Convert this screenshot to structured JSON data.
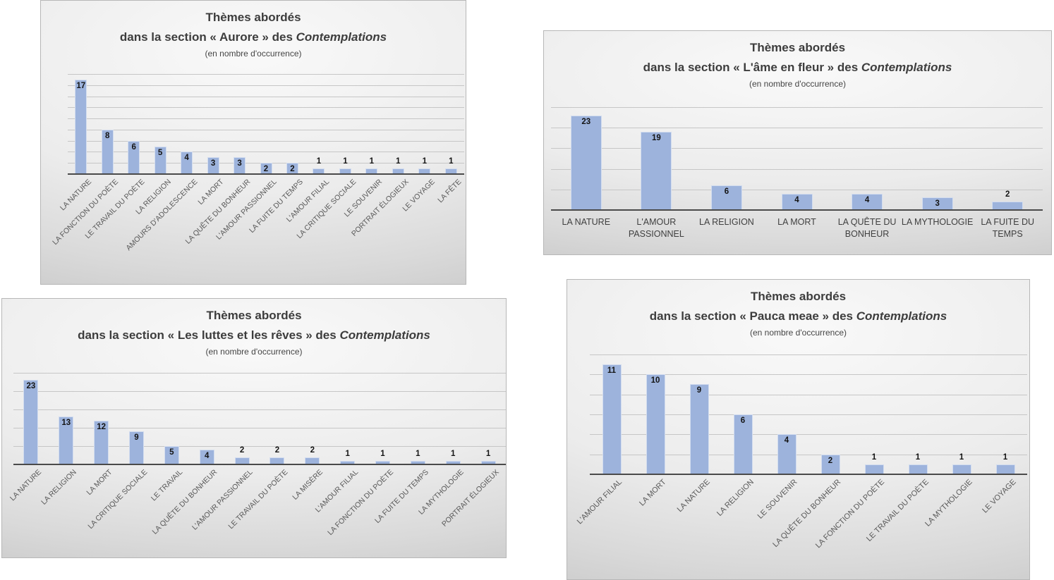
{
  "page": {
    "background": "#ffffff"
  },
  "chart_data": [
    {
      "type": "bar",
      "title": "Thèmes abordés",
      "title_line2_prefix": "dans la section « Aurore » des ",
      "title_line2_italic": "Contemplations",
      "note": "(en nombre d'occurrence)",
      "categories": [
        "LA NATURE",
        "LA FONCTION DU POÈTE",
        "LE TRAVAIL DU POÈTE",
        "LA RELIGION",
        "AMOURS D'ADOLESCENCE",
        "LA MORT",
        "LA QUÊTE DU BONHEUR",
        "L'AMOUR PASSIONNEL",
        "LA FUITE DU TEMPS",
        "L'AMOUR FILIAL",
        "LA CRITIQUE SOCIALE",
        "LE SOUVENIR",
        "PORTRAIT ÉLOGIEUX",
        "LE VOYAGE",
        "LA FÊTE"
      ],
      "values": [
        17,
        8,
        6,
        5,
        4,
        3,
        3,
        2,
        2,
        1,
        1,
        1,
        1,
        1,
        1
      ],
      "ylim": [
        0,
        18
      ],
      "grid_step": 2,
      "grid": true,
      "legend": "none",
      "xlabel_rotation": 45,
      "bar_color": "#9db3dc"
    },
    {
      "type": "bar",
      "title": "Thèmes abordés",
      "title_line2_prefix": "dans la section « L'âme en fleur » des ",
      "title_line2_italic": "Contemplations",
      "note": "(en nombre d'occurrence)",
      "categories": [
        "LA NATURE",
        "L'AMOUR PASSIONNEL",
        "LA RELIGION",
        "LA MORT",
        "LA QUÊTE DU BONHEUR",
        "LA MYTHOLOGIE",
        "LA FUITE DU TEMPS"
      ],
      "values": [
        23,
        19,
        6,
        4,
        4,
        3,
        2
      ],
      "ylim": [
        0,
        25
      ],
      "grid_step": 5,
      "grid": true,
      "legend": "none",
      "xlabel_rotation": 0,
      "bar_color": "#9db3dc"
    },
    {
      "type": "bar",
      "title": "Thèmes abordés",
      "title_line2_prefix": "dans la section « Les luttes et les rêves » des ",
      "title_line2_italic": "Contemplations",
      "note": "(en nombre d'occurrence)",
      "categories": [
        "LA NATURE",
        "LA RELIGION",
        "LA MORT",
        "LA CRITIQUE SOCIALE",
        "LE TRAVAIL",
        "LA QUÊTE DU BONHEUR",
        "L'AMOUR PASSIONNEL",
        "LE TRAVAIL DU POÈTE",
        "LA MISÈRE",
        "L'AMOUR FILIAL",
        "LA FONCTION DU POÈTE",
        "LA FUITE DU TEMPS",
        "LA MYTHOLOGIE",
        "PORTRAIT ÉLOGIEUX"
      ],
      "values": [
        23,
        13,
        12,
        9,
        5,
        4,
        2,
        2,
        2,
        1,
        1,
        1,
        1,
        1
      ],
      "ylim": [
        0,
        25
      ],
      "grid_step": 5,
      "grid": true,
      "legend": "none",
      "xlabel_rotation": 45,
      "bar_color": "#9db3dc"
    },
    {
      "type": "bar",
      "title": "Thèmes abordés",
      "title_line2_prefix": "dans la section « Pauca meae » des ",
      "title_line2_italic": "Contemplations",
      "note": "(en nombre d'occurrence)",
      "categories": [
        "L'AMOUR FILIAL",
        "LA MORT",
        "LA NATURE",
        "LA RELIGION",
        "LE SOUVENIR",
        "LA QUÊTE DU BONHEUR",
        "LA FONCTION DU POÈTE",
        "LE TRAVAIL DU POÈTE",
        "LA MYTHOLOGIE",
        "LE VOYAGE"
      ],
      "values": [
        11,
        10,
        9,
        6,
        4,
        2,
        1,
        1,
        1,
        1
      ],
      "ylim": [
        0,
        12
      ],
      "grid_step": 2,
      "grid": true,
      "legend": "none",
      "xlabel_rotation": 45,
      "bar_color": "#9db3dc"
    }
  ],
  "colors": {
    "bar": "#9db3dc",
    "gridline": "#c6c6c6",
    "axis": "#4a4a4a",
    "title": "#3d3d3d",
    "category_label": "#595959"
  }
}
